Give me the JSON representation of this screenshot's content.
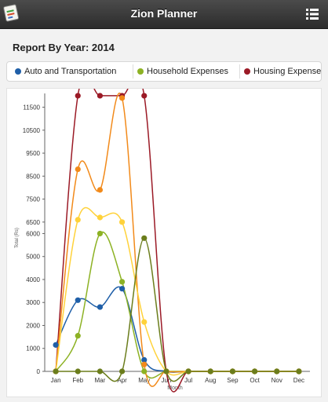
{
  "app": {
    "title": "Zion Planner",
    "logo_icon": "notebook-icon",
    "menu_icon": "list-menu-icon"
  },
  "report": {
    "title": "Report By Year: 2014"
  },
  "legend": [
    {
      "name": "Auto and Transportation",
      "color": "#1f5fa8"
    },
    {
      "name": "Household Expenses",
      "color": "#8db224"
    },
    {
      "name": "Housing Expenses",
      "color": "#9b1a26"
    }
  ],
  "chart_data": {
    "type": "line",
    "x": [
      "Jan",
      "Feb",
      "Mar",
      "Apr",
      "May",
      "Jun",
      "Jul",
      "Aug",
      "Sep",
      "Oct",
      "Nov",
      "Dec"
    ],
    "xlabel": "Month",
    "ylabel": "Total (Rs)",
    "ylim": [
      0,
      12100
    ],
    "yticks": [
      0,
      1000,
      2000,
      3000,
      4000,
      5000,
      6000,
      6500,
      7500,
      8500,
      9500,
      10500,
      11500
    ],
    "grid": false,
    "legend_position": "top",
    "series": [
      {
        "name": "Auto and Transportation",
        "color": "#1f5fa8",
        "values": [
          1150,
          3100,
          2800,
          3600,
          500,
          0,
          0,
          0,
          0,
          0,
          0,
          0
        ]
      },
      {
        "name": "Household Expenses",
        "color": "#8db224",
        "values": [
          0,
          1550,
          6000,
          3900,
          0,
          0,
          0,
          0,
          0,
          0,
          0,
          0
        ]
      },
      {
        "name": "Housing Expenses",
        "color": "#9b1a26",
        "values": [
          0,
          12000,
          12000,
          12000,
          12000,
          0,
          0,
          0,
          0,
          0,
          0,
          0
        ]
      },
      {
        "color": "#f28a1a",
        "values": [
          0,
          8800,
          7900,
          11900,
          300,
          0,
          0,
          0,
          0,
          0,
          0,
          0
        ]
      },
      {
        "color": "#ffd23a",
        "values": [
          0,
          6600,
          6700,
          6500,
          2150,
          0,
          0,
          0,
          0,
          0,
          0,
          0
        ]
      },
      {
        "color": "#6b7d1c",
        "values": [
          0,
          0,
          0,
          0,
          5800,
          0,
          0,
          0,
          0,
          0,
          0,
          0
        ]
      }
    ]
  }
}
